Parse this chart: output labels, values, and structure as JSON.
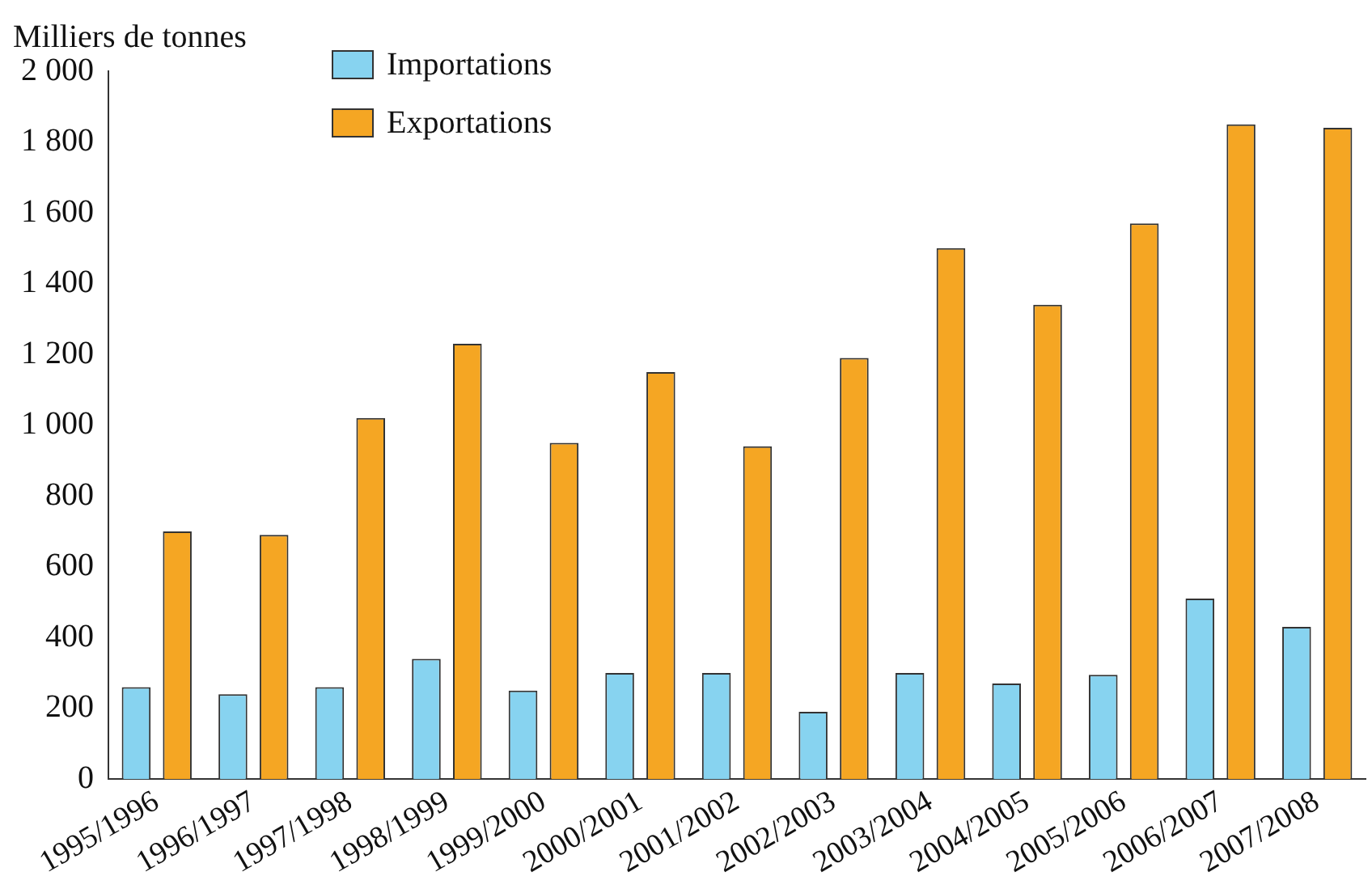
{
  "chart_data": {
    "type": "bar",
    "ylabel": "Milliers de tonnes",
    "categories": [
      "1995/1996",
      "1996/1997",
      "1997/1998",
      "1998/1999",
      "1999/2000",
      "2000/2001",
      "2001/2002",
      "2002/2003",
      "2003/2004",
      "2004/2005",
      "2005/2006",
      "2006/2007",
      "2007/2008"
    ],
    "series": [
      {
        "name": "Importations",
        "color": "#87d3f0",
        "values": [
          260,
          240,
          260,
          340,
          250,
          300,
          300,
          190,
          300,
          270,
          295,
          510,
          430
        ]
      },
      {
        "name": "Exportations",
        "color": "#f5a623",
        "values": [
          700,
          690,
          1020,
          1230,
          950,
          1150,
          940,
          1190,
          1500,
          1340,
          1570,
          1850,
          1840
        ]
      }
    ],
    "ylim": [
      0,
      2000
    ],
    "yticks": [
      0,
      200,
      400,
      600,
      800,
      {
        "value": 1000,
        "label": "1 000"
      },
      {
        "value": 1200,
        "label": "1 200"
      },
      {
        "value": 1400,
        "label": "1 400"
      },
      {
        "value": 1600,
        "label": "1 600"
      },
      {
        "value": 1800,
        "label": "1 800"
      },
      {
        "value": 2000,
        "label": "2 000"
      }
    ],
    "grid": false,
    "legend": "top left"
  }
}
